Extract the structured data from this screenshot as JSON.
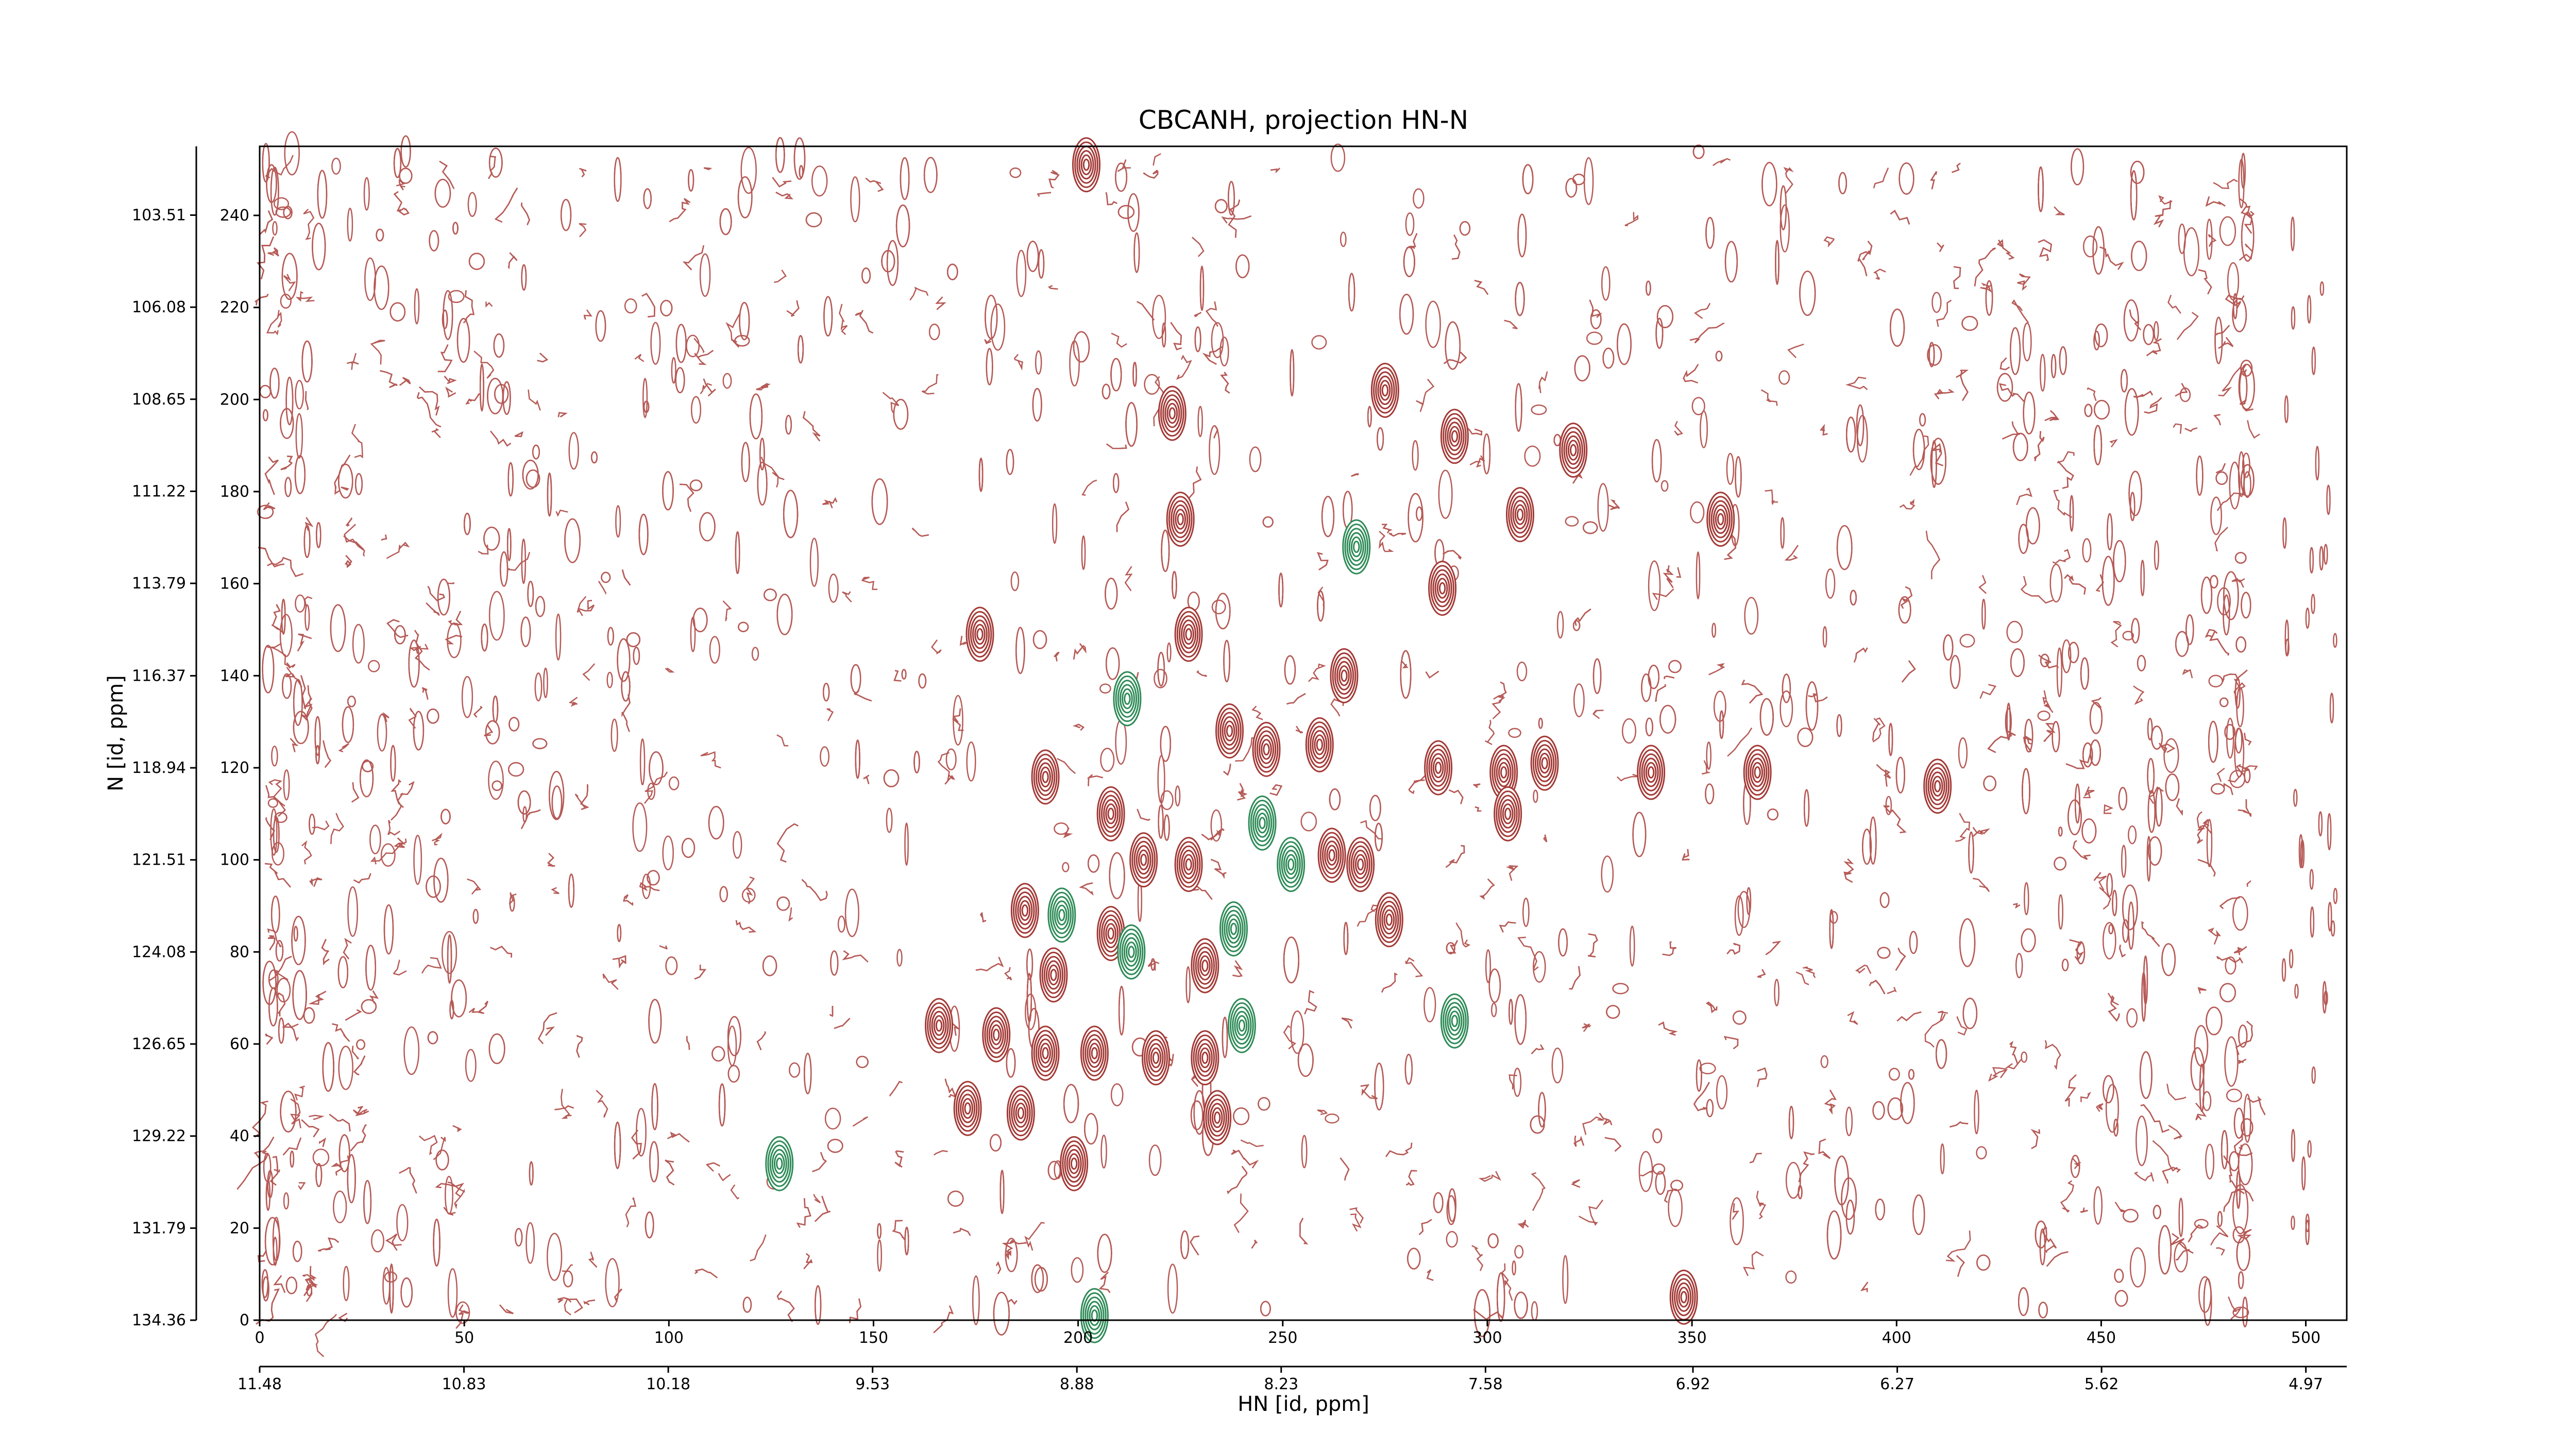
{
  "chart_data": {
    "type": "contour",
    "title": "CBCANH, projection HN-N",
    "xlabel": "HN [id, ppm]",
    "ylabel": "N [id, ppm]",
    "xlim": [
      0,
      510
    ],
    "xticks": [
      0,
      50,
      100,
      150,
      200,
      250,
      300,
      350,
      400,
      450,
      500
    ],
    "x2lim": [
      11.48,
      4.84
    ],
    "x2ticks": [
      11.48,
      10.83,
      10.18,
      9.53,
      8.88,
      8.23,
      7.58,
      6.92,
      6.27,
      5.62,
      4.97
    ],
    "ylim": [
      0,
      255
    ],
    "yticks": [
      0,
      20,
      40,
      60,
      80,
      100,
      120,
      140,
      160,
      180,
      200,
      220,
      240
    ],
    "y2lim": [
      134.36,
      101.59
    ],
    "y2ticks": [
      134.36,
      131.79,
      129.22,
      126.65,
      124.08,
      121.51,
      118.94,
      116.37,
      113.79,
      111.22,
      108.65,
      106.08,
      103.51
    ],
    "peaks": [
      {
        "color": "#a33a36",
        "x": [
          202,
          275,
          292,
          321,
          223,
          225,
          289,
          176,
          227,
          265,
          237,
          246,
          259,
          192,
          288,
          304,
          314,
          340,
          366,
          410,
          208,
          305,
          216,
          227,
          262,
          269,
          187,
          208,
          276,
          194,
          231,
          166,
          180,
          192,
          204,
          219,
          231,
          173,
          186,
          234,
          199,
          348,
          308,
          357
        ],
        "y": [
          251,
          202,
          192,
          189,
          197,
          174,
          159,
          149,
          149,
          140,
          128,
          124,
          125,
          118,
          120,
          119,
          121,
          119,
          119,
          116,
          110,
          110,
          100,
          99,
          101,
          99,
          89,
          84,
          87,
          75,
          77,
          64,
          62,
          58,
          58,
          57,
          57,
          46,
          45,
          44,
          34,
          5,
          175,
          174
        ]
      },
      {
        "color": "#2e8b57",
        "x": [
          268,
          212,
          245,
          252,
          196,
          238,
          213,
          240,
          292,
          127,
          204
        ],
        "y": [
          168,
          135,
          108,
          99,
          88,
          85,
          80,
          64,
          65,
          34,
          1
        ]
      }
    ]
  }
}
